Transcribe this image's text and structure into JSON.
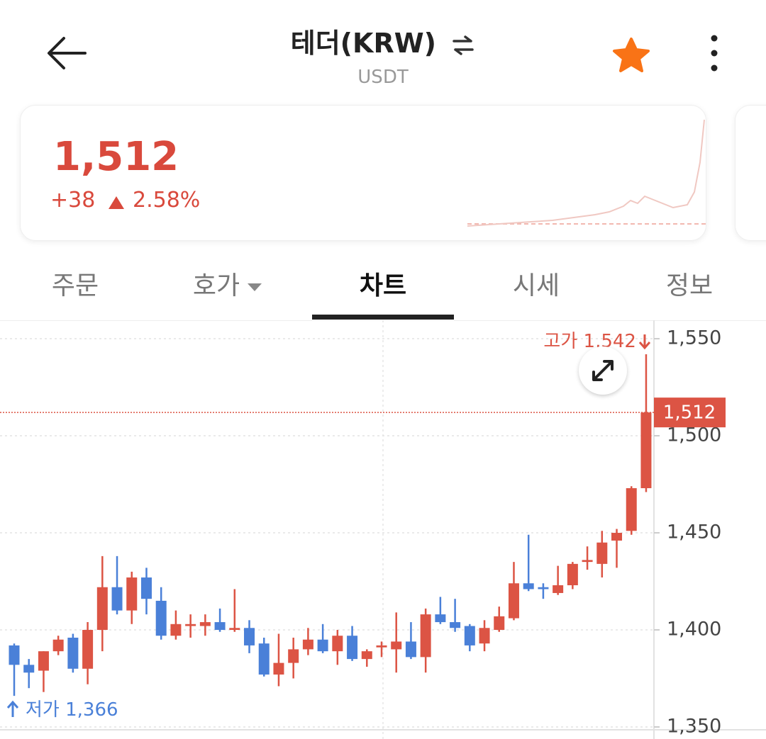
{
  "header": {
    "title": "테더(KRW)",
    "subtitle": "USDT"
  },
  "price_card": {
    "price": "1,512",
    "change": "+38",
    "change_rate": "2.58%"
  },
  "tabs": [
    "주문",
    "호가",
    "차트",
    "시세",
    "정보"
  ],
  "active_tab": 2,
  "chart_data": {
    "type": "candlestick",
    "up_color": "#dc5444",
    "down_color": "#4a80d8",
    "ylim": [
      1343.8,
      1559.5
    ],
    "yticks": [
      {
        "value": 1550,
        "label": "1,550"
      },
      {
        "value": 1500,
        "label": "1,500"
      },
      {
        "value": 1450,
        "label": "1,450"
      },
      {
        "value": 1400,
        "label": "1,400"
      },
      {
        "value": 1350,
        "label": "1,350"
      }
    ],
    "grid": true,
    "open": [
      1392,
      1382,
      1379,
      1389,
      1396,
      1380,
      1400,
      1422,
      1410,
      1427,
      1415,
      1397,
      1402,
      1402,
      1404,
      1400,
      1401,
      1393,
      1377,
      1383,
      1390,
      1395,
      1389,
      1397,
      1385,
      1391,
      1390,
      1394,
      1386,
      1408,
      1404,
      1402,
      1393,
      1400,
      1406,
      1424,
      1422,
      1419,
      1423,
      1435,
      1434,
      1446,
      1451,
      1473
    ],
    "high": [
      1393,
      1385,
      1389,
      1397,
      1398,
      1404,
      1438,
      1438,
      1430,
      1432,
      1422,
      1410,
      1408,
      1408,
      1411,
      1421,
      1405,
      1396,
      1398,
      1396,
      1401,
      1403,
      1400,
      1402,
      1390,
      1394,
      1409,
      1404,
      1411,
      1417,
      1416,
      1403,
      1405,
      1412,
      1435,
      1449,
      1424,
      1433,
      1435,
      1443,
      1451,
      1452,
      1474,
      1542
    ],
    "low": [
      1366,
      1370,
      1368,
      1387,
      1378,
      1372,
      1389,
      1408,
      1403,
      1408,
      1395,
      1395,
      1396,
      1397,
      1399,
      1399,
      1388,
      1376,
      1371,
      1375,
      1387,
      1388,
      1382,
      1384,
      1381,
      1386,
      1378,
      1385,
      1378,
      1403,
      1399,
      1389,
      1389,
      1399,
      1405,
      1420,
      1416,
      1418,
      1421,
      1431,
      1427,
      1432,
      1449,
      1471
    ],
    "close": [
      1382,
      1378,
      1389,
      1395,
      1380,
      1400,
      1422,
      1410,
      1427,
      1416,
      1397,
      1403,
      1403,
      1404,
      1400,
      1401,
      1392,
      1377,
      1383,
      1390,
      1395,
      1389,
      1397,
      1385,
      1389,
      1392,
      1394,
      1386,
      1408,
      1404,
      1401,
      1392,
      1401,
      1407,
      1424,
      1421,
      1421,
      1423,
      1434,
      1436,
      1445,
      1450,
      1473,
      1512
    ],
    "high_marker": {
      "text": "고가",
      "value": 1542,
      "label": "1,542"
    },
    "low_marker": {
      "text": "저가",
      "value": 1366,
      "label": "1,366"
    },
    "current_price": {
      "value": 1512,
      "label": "1,512"
    }
  }
}
